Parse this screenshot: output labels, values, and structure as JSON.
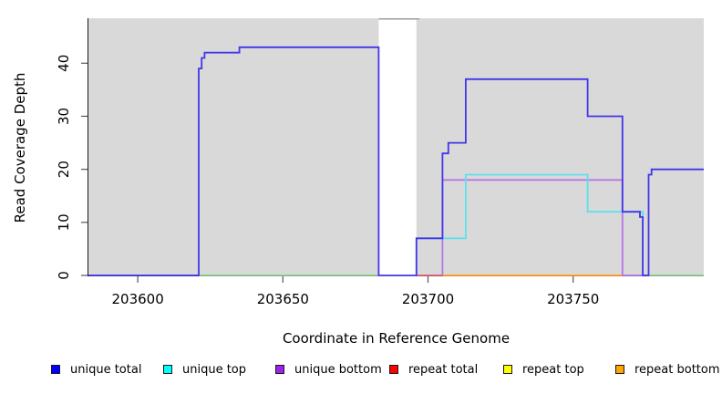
{
  "y_axis": {
    "label": "Read Coverage Depth",
    "ticks": [
      0,
      10,
      20,
      30,
      40
    ],
    "range": [
      0,
      48.5
    ]
  },
  "x_axis": {
    "label": "Coordinate in Reference Genome",
    "ticks": [
      203600,
      203650,
      203700,
      203750
    ],
    "range": [
      203583,
      203795
    ]
  },
  "plot": {
    "background_color": "#d9d9d9",
    "axis_color": "#1a1a1a",
    "gap_band": {
      "start": 203683,
      "end": 203696,
      "fill": "#ffffff",
      "top_line_color": "#9c9c9c"
    }
  },
  "legend": {
    "items": [
      {
        "label": "unique total",
        "color": "#0000ff"
      },
      {
        "label": "unique top",
        "color": "#00ffff"
      },
      {
        "label": "unique bottom",
        "color": "#a020f0"
      },
      {
        "label": "repeat total",
        "color": "#ff0000"
      },
      {
        "label": "repeat top",
        "color": "#ffff00"
      },
      {
        "label": "repeat bottom",
        "color": "#ffa500"
      }
    ],
    "item_lefts": [
      56,
      179,
      302,
      427,
      552,
      675
    ]
  },
  "chart_data": {
    "type": "line",
    "step": true,
    "title": "",
    "xlabel": "Coordinate in Reference Genome",
    "ylabel": "Read Coverage Depth",
    "xlim": [
      203583,
      203795
    ],
    "ylim": [
      0,
      48.5
    ],
    "grid": false,
    "legend_position": "bottom",
    "series": [
      {
        "name": "repeat top (zero level)",
        "line_color": "#8ccf8c",
        "segments": [
          [
            [
              203621,
              0
            ],
            [
              203683,
              0
            ]
          ],
          [
            [
              203776,
              0
            ],
            [
              203795,
              0
            ]
          ]
        ]
      },
      {
        "name": "repeat total",
        "line_color": "#d4607a",
        "segments": [
          [
            [
              203696,
              0
            ],
            [
              203705,
              0
            ]
          ]
        ]
      },
      {
        "name": "repeat bottom",
        "line_color": "#ffa020",
        "segments": [
          [
            [
              203705,
              0
            ],
            [
              203767,
              0
            ]
          ]
        ]
      },
      {
        "name": "unique bottom",
        "line_color": "#b875e6",
        "segments": [
          [
            [
              203705,
              0
            ],
            [
              203705,
              18
            ],
            [
              203767,
              18
            ],
            [
              203767,
              0
            ],
            [
              203776,
              0
            ]
          ]
        ]
      },
      {
        "name": "unique top",
        "line_color": "#5ee0ec",
        "segments": [
          [
            [
              203696,
              0
            ],
            [
              203696,
              7
            ],
            [
              203713,
              7
            ],
            [
              203713,
              19
            ],
            [
              203755,
              19
            ],
            [
              203755,
              12
            ],
            [
              203774,
              12
            ],
            [
              203774,
              0
            ]
          ]
        ]
      },
      {
        "name": "unique total",
        "line_color": "#4335e8",
        "segments": [
          [
            [
              203583,
              0
            ],
            [
              203621,
              0
            ],
            [
              203621,
              39
            ],
            [
              203622,
              39
            ],
            [
              203622,
              41
            ],
            [
              203623,
              41
            ],
            [
              203623,
              42
            ],
            [
              203635,
              42
            ],
            [
              203635,
              43
            ],
            [
              203683,
              43
            ],
            [
              203683,
              0
            ],
            [
              203696,
              0
            ],
            [
              203696,
              7
            ],
            [
              203705,
              7
            ],
            [
              203705,
              23
            ],
            [
              203707,
              23
            ],
            [
              203707,
              25
            ],
            [
              203713,
              25
            ],
            [
              203713,
              37
            ],
            [
              203755,
              37
            ],
            [
              203755,
              30
            ],
            [
              203767,
              30
            ],
            [
              203767,
              12
            ],
            [
              203773,
              12
            ],
            [
              203773,
              11
            ],
            [
              203774,
              11
            ],
            [
              203774,
              0
            ],
            [
              203776,
              0
            ],
            [
              203776,
              19
            ],
            [
              203777,
              19
            ],
            [
              203777,
              20
            ],
            [
              203795,
              20
            ]
          ]
        ]
      }
    ]
  }
}
